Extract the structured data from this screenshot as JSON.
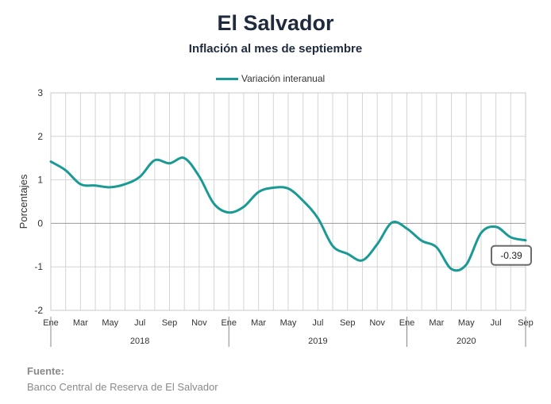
{
  "header": {
    "title": "El Salvador",
    "subtitle": "Inflación al mes de septiembre"
  },
  "footer": {
    "source_label": "Fuente:",
    "source_text": "Banco Central de Reserva de El Salvador"
  },
  "chart_data": {
    "type": "line",
    "title": "El Salvador",
    "subtitle": "Inflación al mes de septiembre",
    "ylabel": "Porcentajes",
    "xlabel": "",
    "ylim": [
      -2,
      3
    ],
    "yticks": [
      3,
      2,
      1,
      0,
      -1,
      -2
    ],
    "grid": true,
    "legend_position": "top-center",
    "x": [
      "2018-01",
      "2018-02",
      "2018-03",
      "2018-04",
      "2018-05",
      "2018-06",
      "2018-07",
      "2018-08",
      "2018-09",
      "2018-10",
      "2018-11",
      "2018-12",
      "2019-01",
      "2019-02",
      "2019-03",
      "2019-04",
      "2019-05",
      "2019-06",
      "2019-07",
      "2019-08",
      "2019-09",
      "2019-10",
      "2019-11",
      "2019-12",
      "2020-01",
      "2020-02",
      "2020-03",
      "2020-04",
      "2020-05",
      "2020-06",
      "2020-07",
      "2020-08",
      "2020-09"
    ],
    "month_tick_labels": [
      "Ene",
      "",
      "Mar",
      "",
      "May",
      "",
      "Jul",
      "",
      "Sep",
      "",
      "Nov",
      "",
      "Ene",
      "",
      "Mar",
      "",
      "May",
      "",
      "Jul",
      "",
      "Sep",
      "",
      "Nov",
      "",
      "Ene",
      "",
      "Mar",
      "",
      "May",
      "",
      "Jul",
      "",
      "Sep"
    ],
    "year_labels": [
      "2018",
      "2019",
      "2020"
    ],
    "series": [
      {
        "name": "Variación interanual",
        "color": "#1a9a94",
        "values": [
          1.42,
          1.22,
          0.9,
          0.87,
          0.83,
          0.9,
          1.07,
          1.45,
          1.38,
          1.5,
          1.08,
          0.45,
          0.25,
          0.38,
          0.72,
          0.82,
          0.8,
          0.52,
          0.12,
          -0.52,
          -0.7,
          -0.85,
          -0.48,
          0.02,
          -0.12,
          -0.4,
          -0.55,
          -1.05,
          -0.95,
          -0.22,
          -0.08,
          -0.32,
          -0.39
        ]
      }
    ],
    "annotations": [
      {
        "label": "-0.39",
        "x": "2020-09",
        "y": -0.39
      }
    ]
  }
}
